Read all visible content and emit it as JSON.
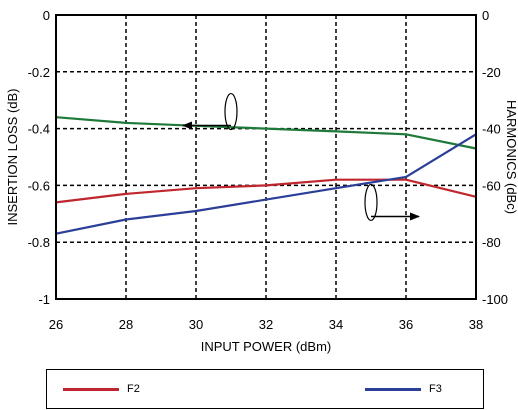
{
  "chart_data": {
    "type": "line",
    "xlabel": "INPUT POWER (dBm)",
    "ylabel_left": "INSERTION LOSS (dB)",
    "ylabel_right": "HARMONICS (dBc)",
    "xlim": [
      26,
      38
    ],
    "ylim_left": [
      -1,
      0
    ],
    "ylim_right": [
      -100,
      0
    ],
    "x_ticks": [
      26,
      28,
      30,
      32,
      34,
      36,
      38
    ],
    "y_ticks_left": [
      "0",
      "-0.2",
      "-0.4",
      "-0.6",
      "-0.8",
      "-1"
    ],
    "y_ticks_right": [
      "0",
      "-20",
      "-40",
      "-60",
      "-80",
      "-100"
    ],
    "grid": true,
    "series": [
      {
        "name": "",
        "axis": "left",
        "color": "#1f7a3a",
        "x": [
          26,
          28,
          30,
          32,
          34,
          36,
          38
        ],
        "y": [
          -0.36,
          -0.38,
          -0.39,
          -0.4,
          -0.41,
          -0.42,
          -0.47
        ]
      },
      {
        "name": "F2",
        "axis": "right",
        "color": "#c0262e",
        "x": [
          26,
          28,
          30,
          32,
          34,
          36,
          38
        ],
        "y": [
          -66,
          -63,
          -61,
          -60,
          -58,
          -58,
          -64
        ]
      },
      {
        "name": "F3",
        "axis": "right",
        "color": "#2b3f99",
        "x": [
          26,
          28,
          30,
          32,
          34,
          36,
          38
        ],
        "y": [
          -77,
          -72,
          -69,
          -65,
          -61,
          -57,
          -42
        ]
      }
    ],
    "annotations": [
      {
        "type": "ellipse-arrow",
        "target_axis": "left",
        "direction": "left",
        "x": 31,
        "y_right": -34
      },
      {
        "type": "ellipse-arrow",
        "target_axis": "right",
        "direction": "right",
        "x": 35,
        "y_right": -66
      }
    ],
    "legend": {
      "placement": "bottom",
      "entries": [
        {
          "label": "F2",
          "color": "#c0262e"
        },
        {
          "label": "F3",
          "color": "#2b3f99"
        }
      ]
    }
  }
}
